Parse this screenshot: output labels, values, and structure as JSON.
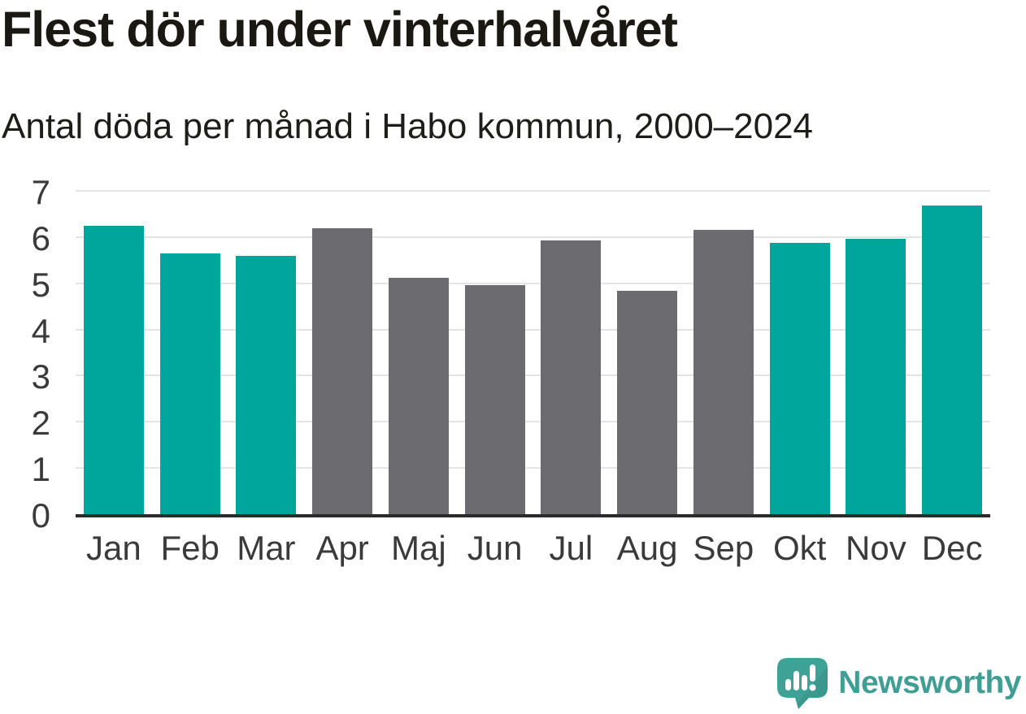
{
  "title": "Flest dör under vinterhalvåret",
  "subtitle": "Antal döda per månad i Habo kommun, 2000–2024",
  "logo": {
    "text": "Newsworthy",
    "icon": "speech-bubble-bar-chart-exclamation",
    "color": "#419e94",
    "icon_color": "#3ea296"
  },
  "colors": {
    "highlight_bar": "#00a59b",
    "muted_bar": "#6b6b70",
    "gridline": "#e4e4e4",
    "axis_line": "#2b2b2b",
    "tick_label": "#3a3a3a",
    "title_text": "#1a1812"
  },
  "chart_data": {
    "type": "bar",
    "title": "Flest dör under vinterhalvåret",
    "subtitle": "Antal döda per månad i Habo kommun, 2000–2024",
    "xlabel": "",
    "ylabel": "",
    "categories": [
      "Jan",
      "Feb",
      "Mar",
      "Apr",
      "Maj",
      "Jun",
      "Jul",
      "Aug",
      "Sep",
      "Okt",
      "Nov",
      "Dec"
    ],
    "values": [
      6.24,
      5.64,
      5.6,
      6.2,
      5.12,
      4.96,
      5.92,
      4.84,
      6.16,
      5.88,
      5.96,
      6.68
    ],
    "bar_colors": [
      "#00a59b",
      "#00a59b",
      "#00a59b",
      "#6b6b70",
      "#6b6b70",
      "#6b6b70",
      "#6b6b70",
      "#6b6b70",
      "#6b6b70",
      "#00a59b",
      "#00a59b",
      "#00a59b"
    ],
    "ylim": [
      0,
      7
    ],
    "yticks": [
      0,
      1,
      2,
      3,
      4,
      5,
      6,
      7
    ],
    "grid": true,
    "legend": "none"
  }
}
